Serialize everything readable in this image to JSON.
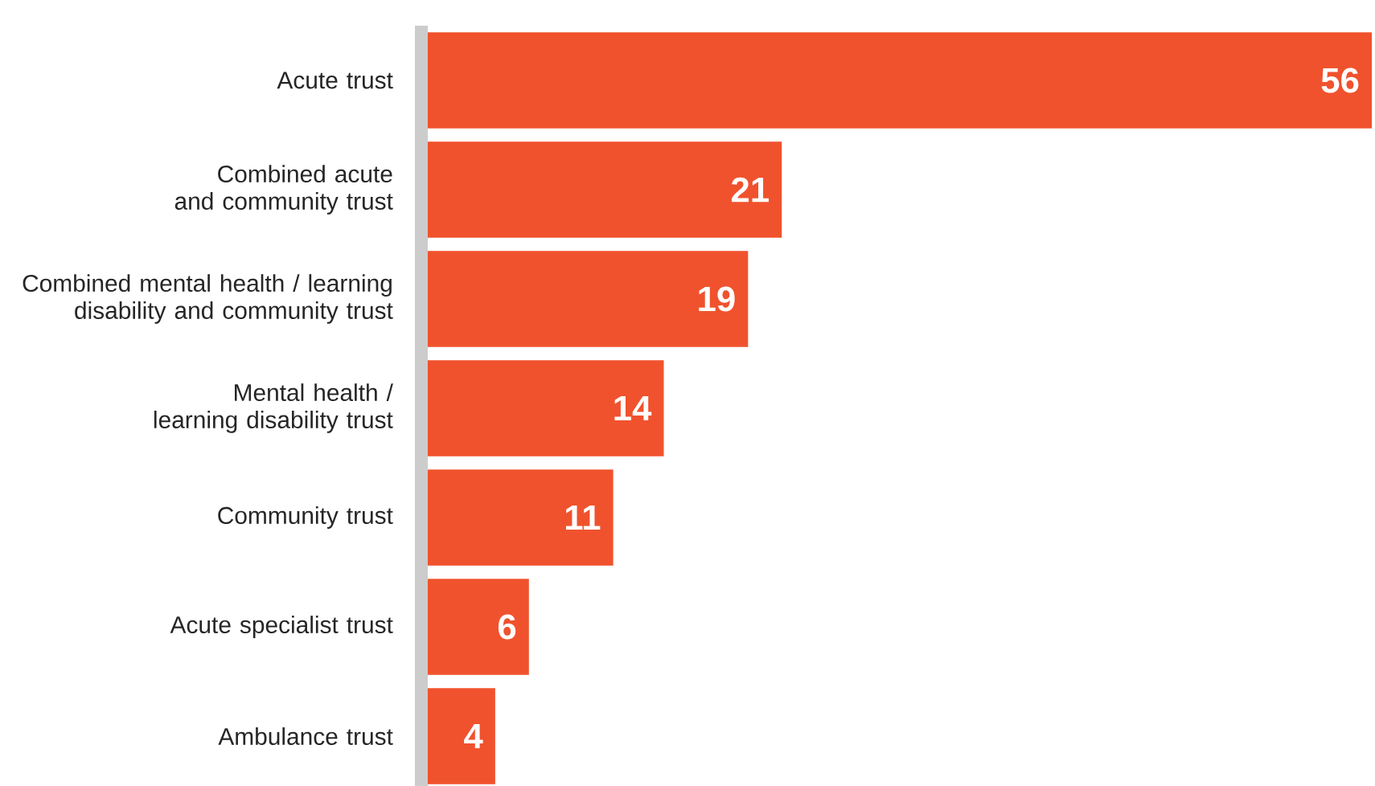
{
  "chart_data": {
    "type": "bar",
    "orientation": "horizontal",
    "categories": [
      "Acute trust",
      "Combined acute and community trust",
      "Combined mental health / learning disability and community trust",
      "Mental health / learning disability trust",
      "Community trust",
      "Acute specialist trust",
      "Ambulance trust"
    ],
    "values": [
      56,
      21,
      19,
      14,
      11,
      6,
      4
    ],
    "color": "#f0522d",
    "data_labels": true
  }
}
